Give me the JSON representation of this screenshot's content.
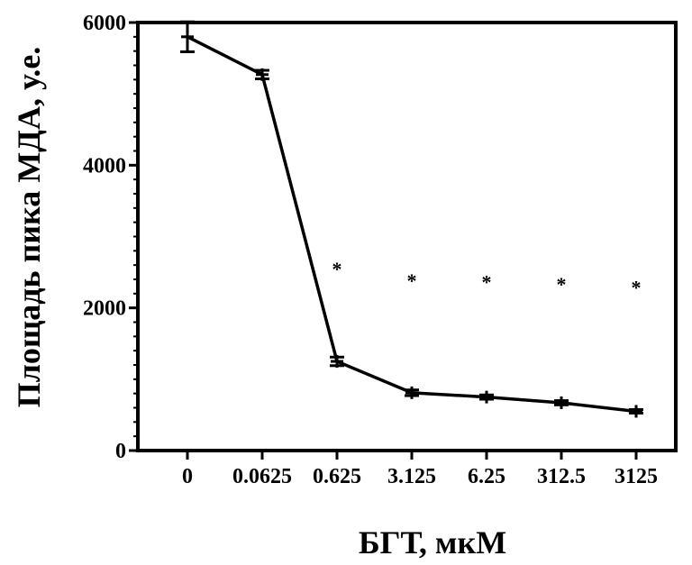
{
  "chart_data": {
    "type": "line",
    "title": "",
    "xlabel": "БГТ, мкМ",
    "ylabel": "Площадь пика МДА, у.е.",
    "categories": [
      "0",
      "0.0625",
      "0.625",
      "3.125",
      "6.25",
      "312.5",
      "3125"
    ],
    "ylim": [
      0,
      6000
    ],
    "y_ticks": [
      0,
      2000,
      4000,
      6000
    ],
    "y_tick_labels": [
      "0",
      "2000",
      "4000",
      "6000"
    ],
    "grid": false,
    "series": [
      {
        "values": [
          5800,
          5270,
          1250,
          810,
          750,
          670,
          550
        ],
        "errors": [
          210,
          60,
          60,
          40,
          30,
          30,
          25
        ],
        "significance": [
          "",
          "",
          "*",
          "*",
          "*",
          "*",
          "*"
        ]
      }
    ]
  }
}
